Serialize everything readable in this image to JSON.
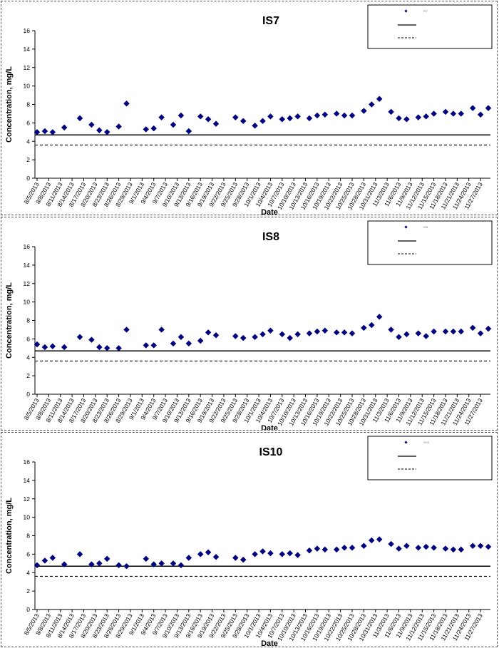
{
  "dates": [
    "8/5/2013",
    "8/8/2013",
    "8/11/2013",
    "8/14/2013",
    "8/17/2013",
    "8/20/2013",
    "8/23/2013",
    "8/26/2013",
    "8/29/2013",
    "9/1/2013",
    "9/4/2013",
    "9/7/2013",
    "9/10/2013",
    "9/13/2013",
    "9/16/2013",
    "9/19/2013",
    "9/22/2013",
    "9/25/2013",
    "9/28/2013",
    "10/1/2013",
    "10/4/2013",
    "10/7/2013",
    "10/10/2013",
    "10/13/2013",
    "10/16/2013",
    "10/19/2013",
    "10/22/2013",
    "10/25/2013",
    "10/28/2013",
    "10/31/2013",
    "11/3/2013",
    "11/6/2013",
    "11/9/2013",
    "11/12/2013",
    "11/15/2013",
    "11/18/2013",
    "11/21/2013",
    "11/24/2013",
    "11/27/2013"
  ],
  "chart_data": [
    {
      "type": "scatter",
      "title": "IS7",
      "xlabel": "Date",
      "ylabel": "Concentration, mg/L",
      "ylim": [
        0,
        16
      ],
      "yticks": [
        0,
        2,
        4,
        6,
        8,
        10,
        12,
        14,
        16
      ],
      "xlim": [
        "8/5/2013",
        "11/29/2013"
      ],
      "grid": false,
      "legend": {
        "placement": "top-right",
        "entries": [
          "IS7",
          "",
          ""
        ]
      },
      "reference_lines": [
        {
          "style": "solid",
          "y": 4.7
        },
        {
          "style": "dashed",
          "y": 3.6
        }
      ],
      "marker_color": "#00007f",
      "series": [
        {
          "x": [
            "8/5/2013",
            "8/7/2013",
            "8/9/2013",
            "8/12/2013",
            "8/16/2013",
            "8/19/2013",
            "8/21/2013",
            "8/23/2013",
            "8/26/2013",
            "8/28/2013",
            "9/2/2013",
            "9/4/2013",
            "9/6/2013",
            "9/9/2013",
            "9/11/2013",
            "9/13/2013",
            "9/16/2013",
            "9/18/2013",
            "9/20/2013",
            "9/25/2013",
            "9/27/2013",
            "9/30/2013",
            "10/2/2013",
            "10/4/2013",
            "10/7/2013",
            "10/9/2013",
            "10/11/2013",
            "10/14/2013",
            "10/16/2013",
            "10/18/2013",
            "10/21/2013",
            "10/23/2013",
            "10/25/2013",
            "10/28/2013",
            "10/30/2013",
            "11/1/2013",
            "11/4/2013",
            "11/6/2013",
            "11/8/2013",
            "11/11/2013",
            "11/13/2013",
            "11/15/2013",
            "11/18/2013",
            "11/20/2013",
            "11/22/2013",
            "11/25/2013",
            "11/27/2013",
            "11/29/2013"
          ],
          "values": [
            5.0,
            5.1,
            5.0,
            5.5,
            6.5,
            5.8,
            5.2,
            5.0,
            5.6,
            8.1,
            5.3,
            5.4,
            6.6,
            5.8,
            6.8,
            5.1,
            6.7,
            6.4,
            5.9,
            6.6,
            6.2,
            5.7,
            6.2,
            6.7,
            6.4,
            6.5,
            6.7,
            6.5,
            6.8,
            6.9,
            7.0,
            6.8,
            6.8,
            7.3,
            8.0,
            8.6,
            7.2,
            6.5,
            6.4,
            6.6,
            6.7,
            7.0,
            7.2,
            7.0,
            7.0,
            7.6,
            6.9,
            7.6
          ]
        }
      ]
    },
    {
      "type": "scatter",
      "title": "IS8",
      "xlabel": "Date",
      "ylabel": "Concentration, mg/L",
      "ylim": [
        0,
        16
      ],
      "yticks": [
        0,
        2,
        4,
        6,
        8,
        10,
        12,
        14,
        16
      ],
      "xlim": [
        "8/5/2013",
        "11/29/2013"
      ],
      "grid": false,
      "legend": {
        "placement": "top-right",
        "entries": [
          "IS8",
          "",
          ""
        ]
      },
      "reference_lines": [
        {
          "style": "solid",
          "y": 4.7
        },
        {
          "style": "dashed",
          "y": 3.6
        }
      ],
      "marker_color": "#00007f",
      "series": [
        {
          "x": [
            "8/5/2013",
            "8/7/2013",
            "8/9/2013",
            "8/12/2013",
            "8/16/2013",
            "8/19/2013",
            "8/21/2013",
            "8/23/2013",
            "8/26/2013",
            "8/28/2013",
            "9/2/2013",
            "9/4/2013",
            "9/6/2013",
            "9/9/2013",
            "9/11/2013",
            "9/13/2013",
            "9/16/2013",
            "9/18/2013",
            "9/20/2013",
            "9/25/2013",
            "9/27/2013",
            "9/30/2013",
            "10/2/2013",
            "10/4/2013",
            "10/7/2013",
            "10/9/2013",
            "10/11/2013",
            "10/14/2013",
            "10/16/2013",
            "10/18/2013",
            "10/21/2013",
            "10/23/2013",
            "10/25/2013",
            "10/28/2013",
            "10/30/2013",
            "11/1/2013",
            "11/4/2013",
            "11/6/2013",
            "11/8/2013",
            "11/11/2013",
            "11/13/2013",
            "11/15/2013",
            "11/18/2013",
            "11/20/2013",
            "11/22/2013",
            "11/25/2013",
            "11/27/2013",
            "11/29/2013"
          ],
          "values": [
            5.4,
            5.1,
            5.2,
            5.1,
            6.2,
            5.9,
            5.1,
            5.0,
            5.0,
            7.0,
            5.3,
            5.3,
            7.0,
            5.5,
            6.2,
            5.5,
            5.8,
            6.7,
            6.4,
            6.3,
            6.1,
            6.2,
            6.5,
            6.9,
            6.5,
            6.1,
            6.5,
            6.6,
            6.8,
            6.9,
            6.7,
            6.7,
            6.6,
            7.2,
            7.5,
            8.4,
            7.0,
            6.2,
            6.5,
            6.6,
            6.3,
            6.8,
            6.8,
            6.8,
            6.8,
            7.2,
            6.6,
            7.1
          ]
        }
      ]
    },
    {
      "type": "scatter",
      "title": "IS10",
      "xlabel": "Date",
      "ylabel": "Concentration, mg/L",
      "ylim": [
        0,
        16
      ],
      "yticks": [
        0,
        2,
        4,
        6,
        8,
        10,
        12,
        14,
        16
      ],
      "xlim": [
        "8/5/2013",
        "11/29/2013"
      ],
      "grid": false,
      "legend": {
        "placement": "top-right",
        "entries": [
          "IS10",
          "",
          ""
        ]
      },
      "reference_lines": [
        {
          "style": "solid",
          "y": 4.7
        },
        {
          "style": "dashed",
          "y": 3.6
        }
      ],
      "marker_color": "#00007f",
      "series": [
        {
          "x": [
            "8/5/2013",
            "8/7/2013",
            "8/9/2013",
            "8/12/2013",
            "8/16/2013",
            "8/19/2013",
            "8/21/2013",
            "8/23/2013",
            "8/26/2013",
            "8/28/2013",
            "9/2/2013",
            "9/4/2013",
            "9/6/2013",
            "9/9/2013",
            "9/11/2013",
            "9/13/2013",
            "9/16/2013",
            "9/18/2013",
            "9/20/2013",
            "9/25/2013",
            "9/27/2013",
            "9/30/2013",
            "10/2/2013",
            "10/4/2013",
            "10/7/2013",
            "10/9/2013",
            "10/11/2013",
            "10/14/2013",
            "10/16/2013",
            "10/18/2013",
            "10/21/2013",
            "10/23/2013",
            "10/25/2013",
            "10/28/2013",
            "10/30/2013",
            "11/1/2013",
            "11/4/2013",
            "11/6/2013",
            "11/8/2013",
            "11/11/2013",
            "11/13/2013",
            "11/15/2013",
            "11/18/2013",
            "11/20/2013",
            "11/22/2013",
            "11/25/2013",
            "11/27/2013",
            "11/29/2013"
          ],
          "values": [
            4.8,
            5.3,
            5.6,
            4.9,
            6.0,
            4.9,
            5.0,
            5.5,
            4.8,
            4.7,
            5.5,
            4.9,
            5.0,
            5.0,
            4.8,
            5.6,
            6.0,
            6.2,
            5.7,
            5.6,
            5.4,
            6.0,
            6.3,
            6.1,
            6.0,
            6.1,
            5.9,
            6.4,
            6.6,
            6.5,
            6.5,
            6.7,
            6.7,
            6.9,
            7.5,
            7.6,
            7.1,
            6.6,
            6.9,
            6.7,
            6.8,
            6.7,
            6.6,
            6.5,
            6.5,
            6.9,
            6.9,
            6.8
          ]
        }
      ]
    }
  ]
}
